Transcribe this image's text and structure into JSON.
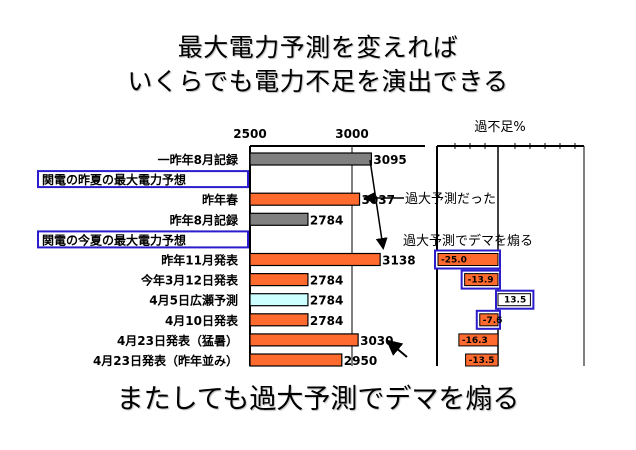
{
  "title_line1": "最大電力予測を変えれば",
  "title_line2": "いくらでも電力不足を演出できる",
  "caption": "またしても過大予測でデマを煽る",
  "annotations": {
    "over_forecast": "過大予測だった",
    "demagogy": "過大予測でデマを煽る"
  },
  "colors": {
    "gray_bar": "#808080",
    "orange_bar": "#ff6a2e",
    "cyan_bar": "#ccffff",
    "highlight_box": "#2b1ccc"
  },
  "chart_data": [
    {
      "type": "bar",
      "orientation": "horizontal",
      "axis_ticks": [
        "2500",
        "3000"
      ],
      "xlim": [
        2500,
        3250
      ],
      "categories": [
        "一昨年8月記録",
        "関電の昨夏の最大電力予想",
        "昨年春",
        "昨年8月記録",
        "関電の今夏の最大電力予想",
        "昨年11月発表",
        "今年3月12日発表",
        "4月5日広瀬予測",
        "4月10日発表",
        "4月23日発表（猛暑）",
        "4月23日発表（昨年並み）"
      ],
      "highlighted_categories": [
        1,
        4
      ],
      "values": [
        3095,
        null,
        3037,
        2784,
        null,
        3138,
        2784,
        2784,
        2784,
        3030,
        2950
      ],
      "value_labels": [
        "3095",
        "",
        "3037",
        "2784",
        "",
        "3138",
        "2784",
        "2784",
        "2784",
        "3030",
        "2950"
      ],
      "bar_colors": [
        "gray",
        null,
        "orange",
        "gray",
        null,
        "orange",
        "orange",
        "cyan",
        "orange",
        "orange",
        "orange"
      ]
    },
    {
      "type": "bar",
      "orientation": "horizontal",
      "title": "過不足%",
      "values": [
        null,
        null,
        null,
        null,
        null,
        -25.0,
        -13.9,
        13.5,
        -7.6,
        -16.3,
        -13.5
      ],
      "value_labels": [
        "",
        "",
        "",
        "",
        "",
        "-25.0",
        "-13.9",
        "13.5",
        "-7.6",
        "-16.3",
        "-13.5"
      ],
      "boxed_labels": [
        "-25.0",
        "-13.9",
        "13.5",
        "-7.6"
      ]
    }
  ]
}
